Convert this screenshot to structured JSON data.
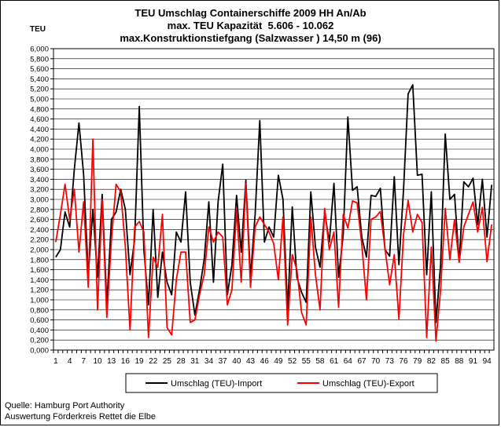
{
  "chart_data": {
    "type": "line",
    "title": "TEU Umschlag Containerschiffe 2009 HH An/Ab",
    "subtitle_lines": [
      "max. TEU Kapazität  5.606 - 10.062",
      "max.Konstruktionstiefgang (Salzwasser ) 14,50 m (96)"
    ],
    "ylabel": "TEU",
    "ylim": [
      0,
      6000
    ],
    "ytick_step": 200,
    "x_tick_labels": [
      "1",
      "4",
      "7",
      "10",
      "13",
      "16",
      "19",
      "22",
      "25",
      "28",
      "31",
      "34",
      "37",
      "40",
      "43",
      "46",
      "49",
      "52",
      "55",
      "58",
      "61",
      "64",
      "67",
      "70",
      "73",
      "76",
      "79",
      "82",
      "85",
      "88",
      "91",
      "94"
    ],
    "x": [
      1,
      2,
      3,
      4,
      5,
      6,
      7,
      8,
      9,
      10,
      11,
      12,
      13,
      14,
      15,
      16,
      17,
      18,
      19,
      20,
      21,
      22,
      23,
      24,
      25,
      26,
      27,
      28,
      29,
      30,
      31,
      32,
      33,
      34,
      35,
      36,
      37,
      38,
      39,
      40,
      41,
      42,
      43,
      44,
      45,
      46,
      47,
      48,
      49,
      50,
      51,
      52,
      53,
      54,
      55,
      56,
      57,
      58,
      59,
      60,
      61,
      62,
      63,
      64,
      65,
      66,
      67,
      68,
      69,
      70,
      71,
      72,
      73,
      74,
      75,
      76,
      77,
      78,
      79,
      80,
      81,
      82,
      83,
      84,
      85,
      86,
      87,
      88,
      89,
      90,
      91,
      92,
      93,
      94,
      95
    ],
    "grid": true,
    "legend_position": "bottom",
    "series": [
      {
        "name": "Umschlag (TEU)-Import",
        "color": "#000000",
        "values": [
          1850,
          2000,
          2750,
          2450,
          3600,
          4520,
          3500,
          1500,
          2800,
          1450,
          3100,
          900,
          2600,
          2750,
          3200,
          2800,
          1500,
          2200,
          4850,
          2000,
          900,
          2800,
          1050,
          1950,
          1350,
          1100,
          2350,
          2150,
          3150,
          1350,
          700,
          1200,
          1800,
          2950,
          1350,
          2950,
          3700,
          1100,
          1700,
          3080,
          1950,
          3380,
          1450,
          2700,
          4570,
          2150,
          2450,
          2250,
          3480,
          3000,
          800,
          2850,
          1450,
          1150,
          950,
          3150,
          2050,
          1650,
          2750,
          2150,
          3320,
          1450,
          2300,
          4640,
          3180,
          3250,
          2250,
          1850,
          3080,
          3060,
          3220,
          2000,
          1870,
          3450,
          1700,
          3200,
          5100,
          5280,
          3480,
          3500,
          1500,
          3150,
          550,
          1700,
          4300,
          3000,
          3100,
          1750,
          3350,
          3250,
          3420,
          2500,
          3400,
          2250,
          3290
        ]
      },
      {
        "name": "Umschlag (TEU)-Export",
        "color": "#ff0000",
        "values": [
          2150,
          2700,
          3300,
          2600,
          3200,
          1950,
          2950,
          1250,
          4200,
          800,
          3000,
          650,
          2200,
          3300,
          3150,
          2050,
          400,
          2450,
          2560,
          2350,
          250,
          1850,
          1650,
          2700,
          450,
          300,
          1400,
          1950,
          1950,
          550,
          600,
          1100,
          1500,
          2450,
          2150,
          2350,
          2250,
          900,
          1200,
          2800,
          1350,
          3320,
          1250,
          2450,
          2650,
          2500,
          2350,
          2120,
          1400,
          2650,
          500,
          1900,
          1600,
          750,
          500,
          2650,
          1500,
          800,
          2820,
          2000,
          2350,
          850,
          2700,
          2430,
          2970,
          2930,
          2100,
          1000,
          2600,
          2650,
          2760,
          2020,
          1300,
          1900,
          620,
          2300,
          2980,
          2350,
          2700,
          2540,
          250,
          2050,
          180,
          1200,
          2820,
          1800,
          2600,
          1750,
          2450,
          2700,
          2950,
          2350,
          2840,
          1760,
          2500
        ]
      }
    ]
  },
  "source": {
    "line1": "Quelle: Hamburg Port Authority",
    "line2": "Auswertung Förderkreis Rettet die Elbe"
  }
}
